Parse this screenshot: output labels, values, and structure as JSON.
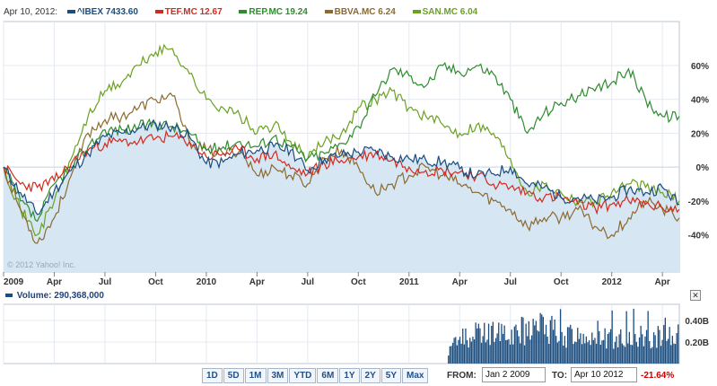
{
  "legend": {
    "date": "Apr 10, 2012:",
    "series": [
      {
        "label": "^IBEX 7433.60",
        "color": "#1a4d80"
      },
      {
        "label": "TEF.MC 12.67",
        "color": "#d42a1e"
      },
      {
        "label": "REP.MC 19.24",
        "color": "#2e8b2e"
      },
      {
        "label": "BBVA.MC 6.24",
        "color": "#8b6a30"
      },
      {
        "label": "SAN.MC 6.04",
        "color": "#6aa120"
      }
    ]
  },
  "copyright": "© 2012 Yahoo! Inc.",
  "chart_data": [
    {
      "type": "line",
      "xlabel": "",
      "ylabel": "",
      "x_tick_labels": [
        "2009",
        "Apr",
        "Jul",
        "Oct",
        "2010",
        "Apr",
        "Jul",
        "Oct",
        "2011",
        "Apr",
        "Jul",
        "Oct",
        "2012",
        "Apr"
      ],
      "y_tick_labels": [
        "60%",
        "40%",
        "20%",
        "0%",
        "-20%",
        "-40%"
      ],
      "ylim": [
        -62,
        86
      ],
      "grid": true,
      "x_months": [
        0,
        1,
        2,
        3,
        4,
        5,
        6,
        7,
        8,
        9,
        10,
        11,
        12,
        13,
        14,
        15,
        16,
        17,
        18,
        19,
        20,
        21,
        22,
        23,
        24,
        25,
        26,
        27,
        28,
        29,
        30,
        31,
        32,
        33,
        34,
        35,
        36,
        37,
        38,
        39,
        40
      ],
      "series": [
        {
          "name": "^IBEX 7433.60",
          "color": "#1a4d80",
          "area": true,
          "values": [
            0,
            -15,
            -28,
            -14,
            -2,
            8,
            18,
            20,
            23,
            25,
            24,
            18,
            2,
            3,
            8,
            10,
            12,
            10,
            -2,
            5,
            7,
            9,
            10,
            6,
            5,
            4,
            3,
            -1,
            -5,
            -4,
            0,
            -10,
            -12,
            -18,
            -18,
            -20,
            -18,
            -13,
            -15,
            -12,
            -22
          ]
        },
        {
          "name": "TEF.MC 12.67",
          "color": "#d42a1e",
          "values": [
            0,
            -10,
            -12,
            -8,
            2,
            10,
            14,
            15,
            15,
            17,
            18,
            15,
            6,
            8,
            10,
            5,
            8,
            -1,
            -4,
            2,
            4,
            6,
            8,
            4,
            0,
            -2,
            -2,
            -3,
            -5,
            -10,
            -12,
            -15,
            -18,
            -18,
            -22,
            -24,
            -22,
            -20,
            -22,
            -24,
            -25
          ]
        },
        {
          "name": "REP.MC 19.24",
          "color": "#2e8b2e",
          "values": [
            0,
            -20,
            -32,
            -10,
            0,
            12,
            22,
            22,
            24,
            26,
            24,
            20,
            10,
            12,
            15,
            12,
            18,
            12,
            5,
            8,
            14,
            24,
            42,
            58,
            54,
            48,
            60,
            56,
            60,
            55,
            40,
            20,
            32,
            38,
            42,
            45,
            50,
            58,
            40,
            30,
            30
          ]
        },
        {
          "name": "BBVA.MC 6.24",
          "color": "#8b6a30",
          "values": [
            0,
            -25,
            -45,
            -30,
            -5,
            20,
            28,
            30,
            35,
            40,
            42,
            15,
            10,
            8,
            10,
            -5,
            0,
            -5,
            -10,
            5,
            10,
            0,
            -15,
            -10,
            -5,
            0,
            -5,
            -10,
            -15,
            -20,
            -25,
            -35,
            -30,
            -30,
            -25,
            -35,
            -40,
            -30,
            -20,
            -25,
            -30
          ]
        },
        {
          "name": "SAN.MC 6.04",
          "color": "#6aa120",
          "values": [
            0,
            -25,
            -40,
            -20,
            5,
            30,
            45,
            50,
            60,
            68,
            70,
            55,
            40,
            35,
            30,
            20,
            25,
            15,
            5,
            15,
            20,
            35,
            40,
            45,
            35,
            30,
            25,
            20,
            25,
            20,
            5,
            -15,
            -10,
            -15,
            -20,
            -20,
            -15,
            -10,
            -12,
            -15,
            -20
          ]
        }
      ]
    },
    {
      "type": "bar",
      "title": "Volume: 290,368,000",
      "y_tick_labels": [
        "0.40B",
        "0.20B"
      ],
      "ylim": [
        0,
        0.55
      ],
      "bars_start_month": 26.3,
      "x_months": [
        26.3,
        27,
        28,
        29,
        30,
        31,
        32,
        33,
        34,
        35,
        36,
        37,
        38,
        39,
        40
      ],
      "values": [
        0.12,
        0.24,
        0.28,
        0.27,
        0.32,
        0.3,
        0.34,
        0.27,
        0.25,
        0.24,
        0.23,
        0.26,
        0.24,
        0.27,
        0.25
      ]
    }
  ],
  "range_buttons": [
    "1D",
    "5D",
    "1M",
    "3M",
    "YTD",
    "6M",
    "1Y",
    "2Y",
    "5Y",
    "Max"
  ],
  "from_label": "FROM:",
  "from_value": "Jan 2 2009",
  "to_label": "TO:",
  "to_value": "Apr 10 2012",
  "change_text": "-21.64%"
}
